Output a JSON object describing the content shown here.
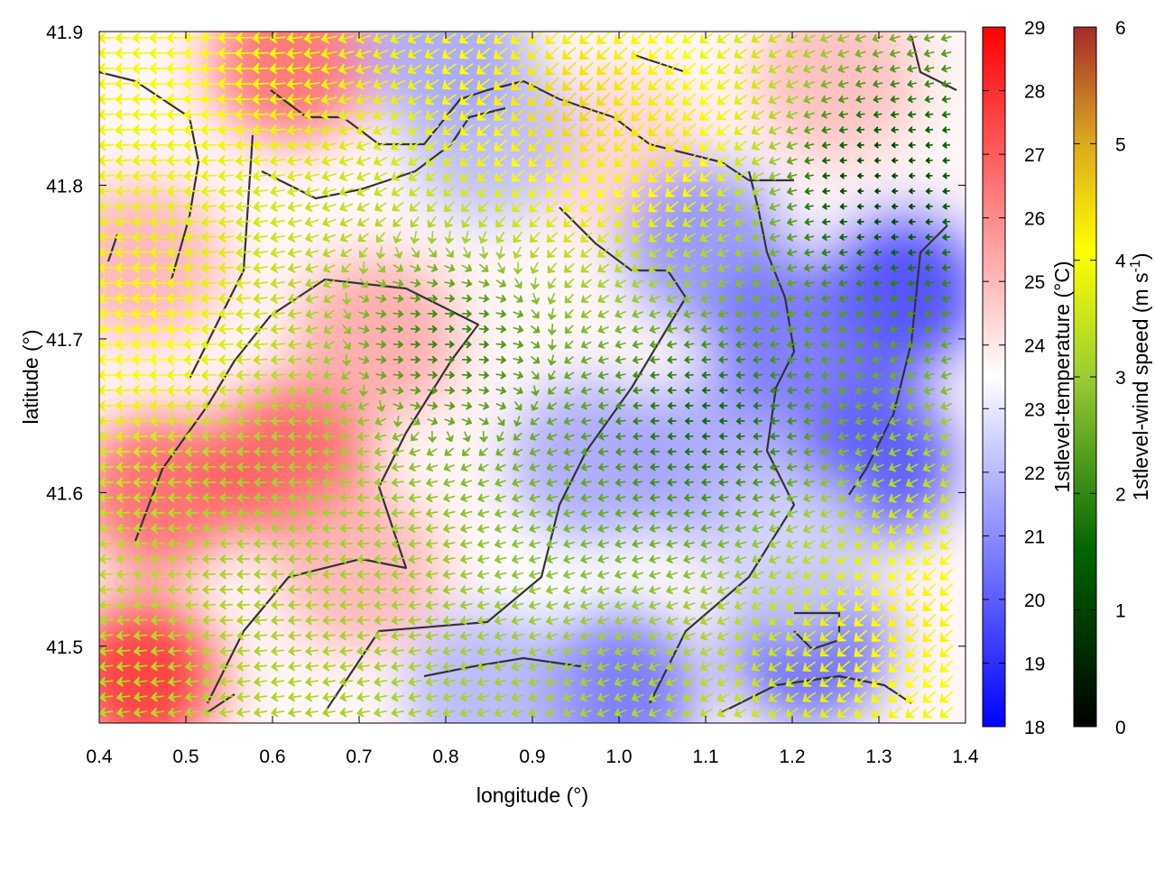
{
  "chart_data": {
    "type": "heatmap",
    "x_axis": {
      "label": "longitude (°)",
      "range": [
        0.4,
        1.4
      ],
      "ticks": [
        0.4,
        0.5,
        0.6,
        0.7,
        0.8,
        0.9,
        1.0,
        1.1,
        1.2,
        1.3,
        1.4
      ],
      "tick_labels": [
        "0.4",
        "0.5",
        "0.6",
        "0.7",
        "0.8",
        "0.9",
        "1.0",
        "1.1",
        "1.2",
        "1.3",
        "1.4"
      ]
    },
    "y_axis": {
      "label": "latitude (°)",
      "range": [
        41.45,
        41.9
      ],
      "ticks": [
        41.5,
        41.6,
        41.7,
        41.8,
        41.9
      ],
      "tick_labels": [
        "41.5",
        "41.6",
        "41.7",
        "41.8",
        "41.9"
      ]
    },
    "temperature_colorbar": {
      "label": "1stlevel-temperature (°C)",
      "range": [
        18,
        29
      ],
      "ticks": [
        18,
        19,
        20,
        21,
        22,
        23,
        24,
        25,
        26,
        27,
        28,
        29
      ],
      "tick_labels": [
        "18",
        "19",
        "20",
        "21",
        "22",
        "23",
        "24",
        "25",
        "26",
        "27",
        "28",
        "29"
      ],
      "colors": [
        "#0000ff",
        "#ffffff",
        "#ff0000"
      ]
    },
    "wind_colorbar": {
      "label": "1stlevel-wind speed (m s-1)",
      "label_main": "1stlevel-wind speed (m s",
      "label_sup": "-1",
      "label_end": ")",
      "range": [
        0,
        6
      ],
      "ticks": [
        0,
        1,
        2,
        3,
        4,
        5,
        6
      ],
      "tick_labels": [
        "0",
        "1",
        "2",
        "3",
        "4",
        "5",
        "6"
      ],
      "colors": [
        "#000000",
        "#006400",
        "#9acd32",
        "#ffff00",
        "#daa520",
        "#a52a2a"
      ]
    },
    "temperature_field": [
      {
        "lon": 0.45,
        "lat": 41.48,
        "value": 28.2
      },
      {
        "lon": 0.47,
        "lat": 41.6,
        "value": 27.0
      },
      {
        "lon": 0.62,
        "lat": 41.62,
        "value": 27.2
      },
      {
        "lon": 0.62,
        "lat": 41.88,
        "value": 26.8
      },
      {
        "lon": 0.45,
        "lat": 41.75,
        "value": 25.2
      },
      {
        "lon": 0.72,
        "lat": 41.7,
        "value": 25.5
      },
      {
        "lon": 0.7,
        "lat": 41.55,
        "value": 25.2
      },
      {
        "lon": 0.95,
        "lat": 41.55,
        "value": 23.5
      },
      {
        "lon": 1.0,
        "lat": 41.82,
        "value": 24.5
      },
      {
        "lon": 1.25,
        "lat": 41.87,
        "value": 25.0
      },
      {
        "lon": 0.85,
        "lat": 41.83,
        "value": 22.0
      },
      {
        "lon": 0.8,
        "lat": 41.89,
        "value": 21.5
      },
      {
        "lon": 0.97,
        "lat": 41.62,
        "value": 21.5
      },
      {
        "lon": 1.1,
        "lat": 41.76,
        "value": 21.0
      },
      {
        "lon": 1.1,
        "lat": 41.62,
        "value": 21.5
      },
      {
        "lon": 1.33,
        "lat": 41.73,
        "value": 19.2
      },
      {
        "lon": 1.3,
        "lat": 41.62,
        "value": 19.5
      },
      {
        "lon": 1.2,
        "lat": 41.7,
        "value": 20.3
      },
      {
        "lon": 1.22,
        "lat": 41.5,
        "value": 20.0
      },
      {
        "lon": 1.0,
        "lat": 41.47,
        "value": 20.3
      },
      {
        "lon": 0.85,
        "lat": 41.47,
        "value": 21.8
      },
      {
        "lon": 1.2,
        "lat": 41.56,
        "value": 22.5
      }
    ],
    "wind_field": [
      {
        "lon": 0.45,
        "lat": 41.7,
        "speed": 3.7,
        "direction": "W"
      },
      {
        "lon": 0.52,
        "lat": 41.87,
        "speed": 3.6,
        "direction": "W"
      },
      {
        "lon": 0.6,
        "lat": 41.6,
        "speed": 2.5,
        "direction": "W"
      },
      {
        "lon": 0.95,
        "lat": 41.85,
        "speed": 4.2,
        "direction": "SW"
      },
      {
        "lon": 1.05,
        "lat": 41.83,
        "speed": 4.0,
        "direction": "SW"
      },
      {
        "lon": 1.35,
        "lat": 41.52,
        "speed": 3.8,
        "direction": "SW"
      },
      {
        "lon": 0.8,
        "lat": 41.7,
        "speed": 1.5,
        "direction": "E"
      },
      {
        "lon": 1.1,
        "lat": 41.65,
        "speed": 1.2,
        "direction": "W"
      },
      {
        "lon": 1.3,
        "lat": 41.8,
        "speed": 0.6,
        "direction": "W"
      }
    ]
  }
}
